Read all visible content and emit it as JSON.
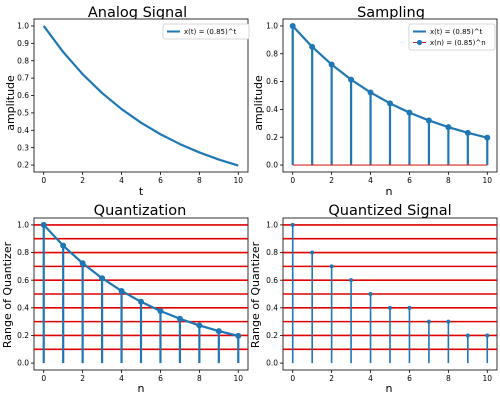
{
  "colors": {
    "signal": "#1f77b4",
    "quant_lines": "#e00000",
    "baseline": "#d62728"
  },
  "chart_data": [
    {
      "id": "analog",
      "type": "line",
      "title": "Analog Signal",
      "xlabel": "t",
      "ylabel": "amplitude",
      "xlim": [
        -0.5,
        10.5
      ],
      "ylim": [
        0.16,
        1.04
      ],
      "xticks": [
        0,
        2,
        4,
        6,
        8,
        10
      ],
      "yticks": [
        0.2,
        0.3,
        0.4,
        0.5,
        0.6,
        0.7,
        0.8,
        0.9,
        1.0
      ],
      "ytick_labels": [
        "0.2",
        "0.3",
        "0.4",
        "0.5",
        "0.6",
        "0.7",
        "0.8",
        "0.9",
        "1.0"
      ],
      "legend": "top-right",
      "series": [
        {
          "name": "x(t) = (0.85)^t",
          "kind": "line",
          "x": [
            0,
            1,
            2,
            3,
            4,
            5,
            6,
            7,
            8,
            9,
            10
          ],
          "values": [
            1.0,
            0.85,
            0.7225,
            0.6141,
            0.522,
            0.4437,
            0.3771,
            0.3206,
            0.2725,
            0.2316,
            0.1969
          ]
        }
      ]
    },
    {
      "id": "sampling",
      "type": "line",
      "title": "Sampling",
      "xlabel": "n",
      "ylabel": "amplitude",
      "xlim": [
        -0.5,
        10.5
      ],
      "ylim": [
        -0.05,
        1.05
      ],
      "xticks": [
        0,
        2,
        4,
        6,
        8,
        10
      ],
      "yticks": [
        0.0,
        0.2,
        0.4,
        0.6,
        0.8,
        1.0
      ],
      "ytick_labels": [
        "0.0",
        "0.2",
        "0.4",
        "0.6",
        "0.8",
        "1.0"
      ],
      "legend": "top-right",
      "series": [
        {
          "name": "x(t) = (0.85)^t",
          "kind": "line",
          "x": [
            0,
            1,
            2,
            3,
            4,
            5,
            6,
            7,
            8,
            9,
            10
          ],
          "values": [
            1.0,
            0.85,
            0.7225,
            0.6141,
            0.522,
            0.4437,
            0.3771,
            0.3206,
            0.2725,
            0.2316,
            0.1969
          ]
        },
        {
          "name": "x(n) = (0.85)^n",
          "kind": "stem",
          "x": [
            0,
            1,
            2,
            3,
            4,
            5,
            6,
            7,
            8,
            9,
            10
          ],
          "values": [
            1.0,
            0.85,
            0.7225,
            0.6141,
            0.522,
            0.4437,
            0.3771,
            0.3206,
            0.2725,
            0.2316,
            0.1969
          ]
        }
      ]
    },
    {
      "id": "quantization",
      "type": "line",
      "title": "Quantization",
      "xlabel": "n",
      "ylabel": "Range of Quantizer",
      "xlim": [
        -0.5,
        10.5
      ],
      "ylim": [
        -0.05,
        1.05
      ],
      "xticks": [
        0,
        2,
        4,
        6,
        8,
        10
      ],
      "yticks": [
        0.0,
        0.2,
        0.4,
        0.6,
        0.8,
        1.0
      ],
      "ytick_labels": [
        "0.0",
        "0.2",
        "0.4",
        "0.6",
        "0.8",
        "1.0"
      ],
      "quantizer_levels": [
        0.1,
        0.2,
        0.3,
        0.4,
        0.5,
        0.6,
        0.7,
        0.8,
        0.9,
        1.0
      ],
      "series": [
        {
          "kind": "line",
          "x": [
            0,
            1,
            2,
            3,
            4,
            5,
            6,
            7,
            8,
            9,
            10
          ],
          "values": [
            1.0,
            0.85,
            0.7225,
            0.6141,
            0.522,
            0.4437,
            0.3771,
            0.3206,
            0.2725,
            0.2316,
            0.1969
          ]
        },
        {
          "kind": "stem",
          "x": [
            0,
            1,
            2,
            3,
            4,
            5,
            6,
            7,
            8,
            9,
            10
          ],
          "values": [
            1.0,
            0.85,
            0.7225,
            0.6141,
            0.522,
            0.4437,
            0.3771,
            0.3206,
            0.2725,
            0.2316,
            0.1969
          ]
        }
      ]
    },
    {
      "id": "quantized",
      "type": "scatter",
      "title": "Quantized Signal",
      "xlabel": "n",
      "ylabel": "Range of Quantizer",
      "xlim": [
        -0.5,
        10.5
      ],
      "ylim": [
        -0.05,
        1.05
      ],
      "xticks": [
        0,
        2,
        4,
        6,
        8,
        10
      ],
      "yticks": [
        0.0,
        0.2,
        0.4,
        0.6,
        0.8,
        1.0
      ],
      "ytick_labels": [
        "0.0",
        "0.2",
        "0.4",
        "0.6",
        "0.8",
        "1.0"
      ],
      "quantizer_levels": [
        0.1,
        0.2,
        0.3,
        0.4,
        0.5,
        0.6,
        0.7,
        0.8,
        0.9,
        1.0
      ],
      "series": [
        {
          "kind": "stem_small",
          "x": [
            0,
            1,
            2,
            3,
            4,
            5,
            6,
            7,
            8,
            9,
            10
          ],
          "values": [
            1.0,
            0.8,
            0.7,
            0.6,
            0.5,
            0.4,
            0.4,
            0.3,
            0.3,
            0.2,
            0.2
          ]
        }
      ]
    }
  ]
}
